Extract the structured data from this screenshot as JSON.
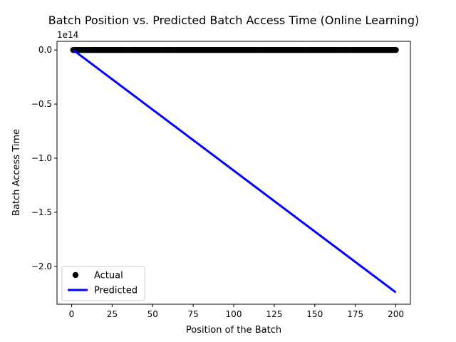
{
  "chart_data": {
    "type": "line",
    "title": "Batch Position vs. Predicted Batch Access Time (Online Learning)",
    "xlabel": "Position of the Batch",
    "ylabel": "Batch Access Time",
    "y_offset_label": "1e14",
    "xlim": [
      -9,
      209
    ],
    "ylim": [
      -2.35,
      0.08
    ],
    "y_scale_factor": 100000000000000.0,
    "grid": false,
    "legend_position": "lower left",
    "x_ticks": [
      0,
      25,
      50,
      75,
      100,
      125,
      150,
      175,
      200
    ],
    "x_tick_labels": [
      "0",
      "25",
      "50",
      "75",
      "100",
      "125",
      "150",
      "175",
      "200"
    ],
    "y_ticks": [
      0.0,
      -0.5,
      -1.0,
      -1.5,
      -2.0
    ],
    "y_tick_labels": [
      "0.0",
      "−0.5",
      "−1.0",
      "−1.5",
      "−2.0"
    ],
    "series": [
      {
        "name": "Actual",
        "kind": "scatter",
        "color": "#000000",
        "x_start": 1,
        "x_end": 200,
        "x_step": 1,
        "y_value": 0.0
      },
      {
        "name": "Predicted",
        "kind": "line",
        "color": "#0000ff",
        "x": [
          1,
          200
        ],
        "y": [
          0.0,
          -2.24
        ]
      }
    ],
    "legend": [
      {
        "label": "Actual",
        "marker": "circle",
        "color": "#000000"
      },
      {
        "label": "Predicted",
        "marker": "line",
        "color": "#0000ff"
      }
    ]
  }
}
